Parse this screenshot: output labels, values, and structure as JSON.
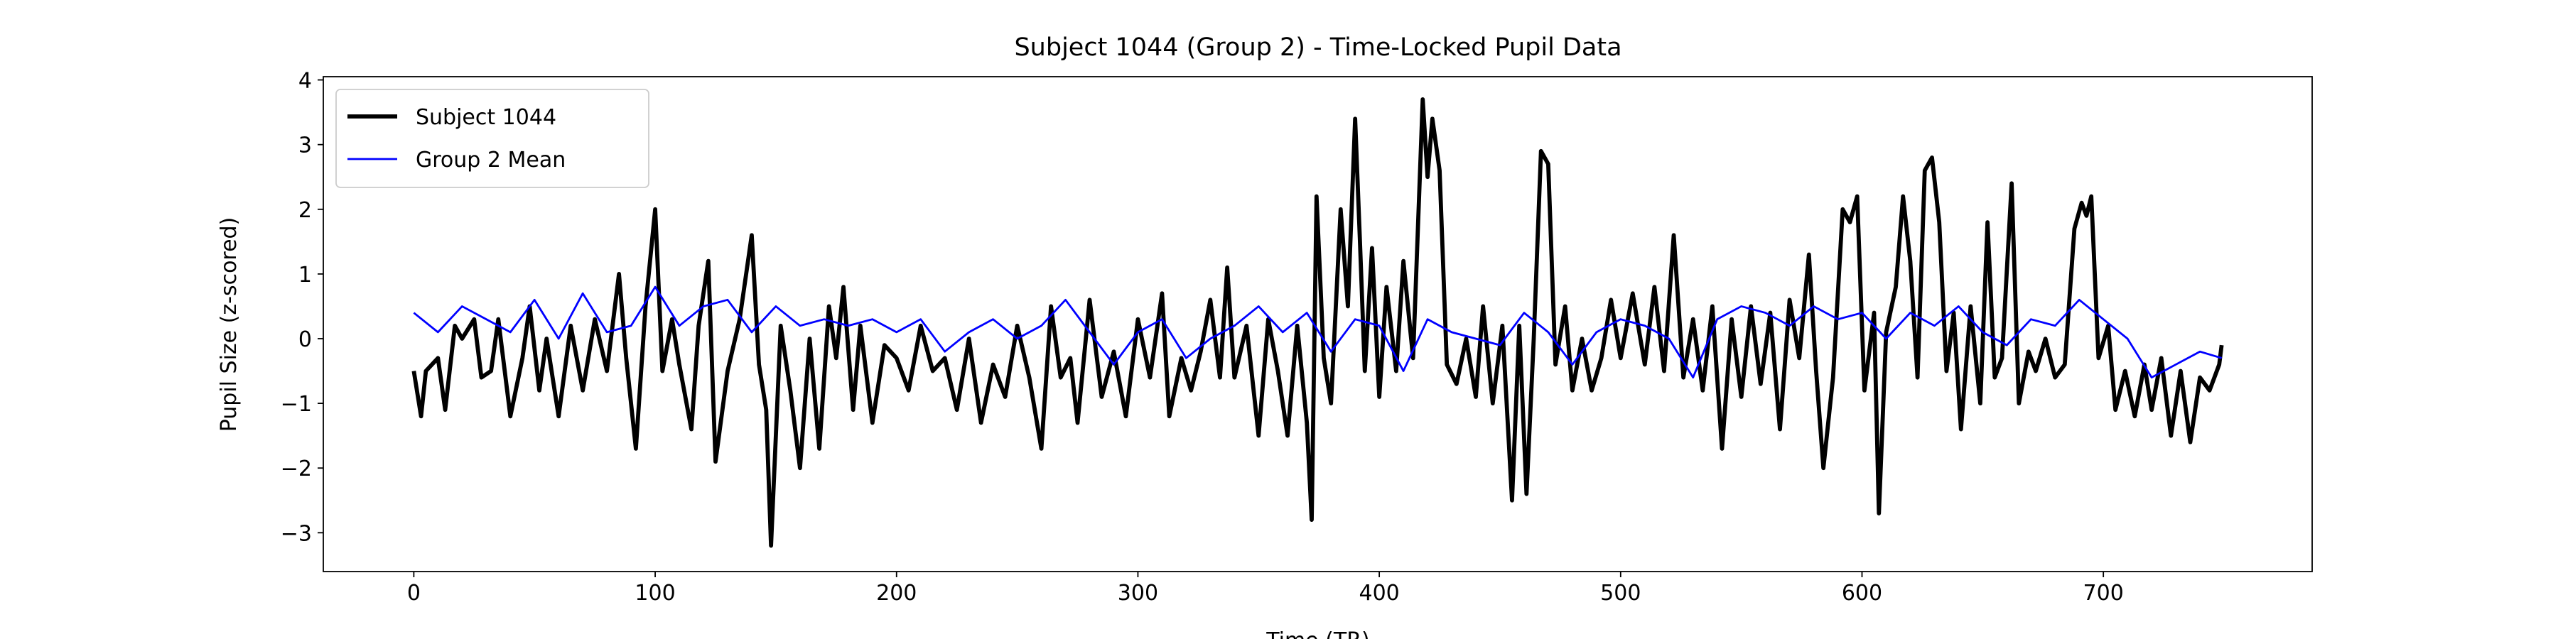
{
  "chart_data": {
    "type": "line",
    "title": "Subject 1044 (Group 2) - Time-Locked Pupil Data",
    "x_label": "Time (TR)",
    "y_label": "Pupil Size (z-scored)",
    "xlim": [
      -37.5,
      786.5
    ],
    "ylim": [
      -3.6,
      4.05
    ],
    "xticks": [
      0,
      100,
      200,
      300,
      400,
      500,
      600,
      700
    ],
    "yticks": [
      {
        "value": -3,
        "label": "−3"
      },
      {
        "value": -2,
        "label": "−2"
      },
      {
        "value": -1,
        "label": "−1"
      },
      0,
      1,
      2,
      3,
      4
    ],
    "legend": "upper left",
    "grid": false,
    "series": [
      {
        "name": "Subject 1044",
        "color": "#000000",
        "x": [
          0,
          3,
          5,
          10,
          13,
          17,
          20,
          25,
          28,
          32,
          35,
          40,
          45,
          48,
          52,
          55,
          60,
          65,
          70,
          75,
          80,
          85,
          88,
          92,
          96,
          100,
          103,
          107,
          110,
          115,
          118,
          122,
          125,
          130,
          135,
          140,
          143,
          146,
          148,
          152,
          156,
          160,
          164,
          168,
          172,
          175,
          178,
          182,
          185,
          190,
          195,
          200,
          205,
          210,
          215,
          220,
          225,
          230,
          235,
          240,
          245,
          250,
          255,
          260,
          264,
          268,
          272,
          275,
          280,
          285,
          290,
          295,
          300,
          305,
          310,
          313,
          318,
          322,
          326,
          330,
          334,
          337,
          340,
          345,
          350,
          354,
          358,
          362,
          366,
          370,
          372,
          374,
          377,
          380,
          384,
          387,
          390,
          392,
          394,
          397,
          400,
          403,
          407,
          410,
          414,
          418,
          420,
          422,
          425,
          428,
          432,
          436,
          440,
          443,
          447,
          451,
          455,
          458,
          461,
          464,
          467,
          470,
          473,
          477,
          480,
          484,
          488,
          492,
          496,
          500,
          505,
          510,
          514,
          518,
          522,
          526,
          530,
          534,
          538,
          542,
          546,
          550,
          554,
          558,
          562,
          566,
          570,
          574,
          578,
          581,
          584,
          588,
          592,
          595,
          598,
          601,
          605,
          607,
          610,
          614,
          617,
          620,
          623,
          626,
          629,
          632,
          635,
          638,
          641,
          645,
          649,
          652,
          655,
          658,
          662,
          665,
          669,
          672,
          676,
          680,
          684,
          688,
          691,
          693,
          695,
          698,
          702,
          705,
          709,
          713,
          717,
          720,
          724,
          728,
          732,
          736,
          740,
          744,
          748,
          749
        ],
        "values": [
          -0.5,
          -1.2,
          -0.5,
          -0.3,
          -1.1,
          0.2,
          0,
          0.3,
          -0.6,
          -0.5,
          0.3,
          -1.2,
          -0.3,
          0.5,
          -0.8,
          0,
          -1.2,
          0.2,
          -0.8,
          0.3,
          -0.5,
          1,
          -0.3,
          -1.7,
          0.5,
          2,
          -0.5,
          0.3,
          -0.4,
          -1.4,
          0.2,
          1.2,
          -1.9,
          -0.5,
          0.3,
          1.6,
          -0.4,
          -1.1,
          -3.2,
          0.2,
          -0.8,
          -2,
          0,
          -1.7,
          0.5,
          -0.3,
          0.8,
          -1.1,
          0.2,
          -1.3,
          -0.1,
          -0.3,
          -0.8,
          0.2,
          -0.5,
          -0.3,
          -1.1,
          0,
          -1.3,
          -0.4,
          -0.9,
          0.2,
          -0.6,
          -1.7,
          0.5,
          -0.6,
          -0.3,
          -1.3,
          0.6,
          -0.9,
          -0.2,
          -1.2,
          0.3,
          -0.6,
          0.7,
          -1.2,
          -0.3,
          -0.8,
          -0.2,
          0.6,
          -0.6,
          1.1,
          -0.6,
          0.2,
          -1.5,
          0.3,
          -0.5,
          -1.5,
          0.2,
          -1.3,
          -2.8,
          2.2,
          -0.3,
          -1,
          2,
          0.5,
          3.4,
          1.5,
          -0.5,
          1.4,
          -0.9,
          0.8,
          -0.5,
          1.2,
          -0.3,
          3.7,
          2.5,
          3.4,
          2.6,
          -0.4,
          -0.7,
          0,
          -0.9,
          0.5,
          -1,
          0.2,
          -2.5,
          0.2,
          -2.4,
          0,
          2.9,
          2.7,
          -0.4,
          0.5,
          -0.8,
          0,
          -0.8,
          -0.3,
          0.6,
          -0.3,
          0.7,
          -0.4,
          0.8,
          -0.5,
          1.6,
          -0.6,
          0.3,
          -0.8,
          0.5,
          -1.7,
          0.3,
          -0.9,
          0.5,
          -0.7,
          0.4,
          -1.4,
          0.6,
          -0.3,
          1.3,
          -0.5,
          -2,
          -0.6,
          2,
          1.8,
          2.2,
          -0.8,
          0.4,
          -2.7,
          0.1,
          0.8,
          2.2,
          1.2,
          -0.6,
          2.6,
          2.8,
          1.8,
          -0.5,
          0.4,
          -1.4,
          0.5,
          -1,
          1.8,
          -0.6,
          -0.3,
          2.4,
          -1,
          -0.2,
          -0.5,
          0,
          -0.6,
          -0.4,
          1.7,
          2.1,
          1.9,
          2.2,
          -0.3,
          0.2,
          -1.1,
          -0.5,
          -1.2,
          -0.4,
          -1.1,
          -0.3,
          -1.5,
          -0.5,
          -1.6,
          -0.6,
          -0.8,
          -0.4,
          -0.1
        ]
      },
      {
        "name": "Group 2 Mean",
        "color": "#0000ff",
        "x": [
          0,
          10,
          20,
          30,
          40,
          50,
          60,
          70,
          80,
          90,
          100,
          110,
          120,
          130,
          140,
          150,
          160,
          170,
          180,
          190,
          200,
          210,
          220,
          230,
          240,
          250,
          260,
          270,
          280,
          290,
          300,
          310,
          320,
          330,
          340,
          350,
          360,
          370,
          380,
          390,
          400,
          410,
          420,
          430,
          440,
          450,
          460,
          470,
          480,
          490,
          500,
          510,
          520,
          530,
          540,
          550,
          560,
          570,
          580,
          590,
          600,
          610,
          620,
          630,
          640,
          650,
          660,
          670,
          680,
          690,
          700,
          710,
          720,
          730,
          740,
          749
        ],
        "values": [
          0.4,
          0.1,
          0.5,
          0.3,
          0.1,
          0.6,
          0,
          0.7,
          0.1,
          0.2,
          0.8,
          0.2,
          0.5,
          0.6,
          0.1,
          0.5,
          0.2,
          0.3,
          0.2,
          0.3,
          0.1,
          0.3,
          -0.2,
          0.1,
          0.3,
          0,
          0.2,
          0.6,
          0.1,
          -0.4,
          0.1,
          0.3,
          -0.3,
          0,
          0.2,
          0.5,
          0.1,
          0.4,
          -0.2,
          0.3,
          0.2,
          -0.5,
          0.3,
          0.1,
          0,
          -0.1,
          0.4,
          0.1,
          -0.4,
          0.1,
          0.3,
          0.2,
          0,
          -0.6,
          0.3,
          0.5,
          0.4,
          0.2,
          0.5,
          0.3,
          0.4,
          0,
          0.4,
          0.2,
          0.5,
          0.1,
          -0.1,
          0.3,
          0.2,
          0.6,
          0.3,
          0,
          -0.6,
          -0.4,
          -0.2,
          -0.3
        ]
      }
    ]
  }
}
